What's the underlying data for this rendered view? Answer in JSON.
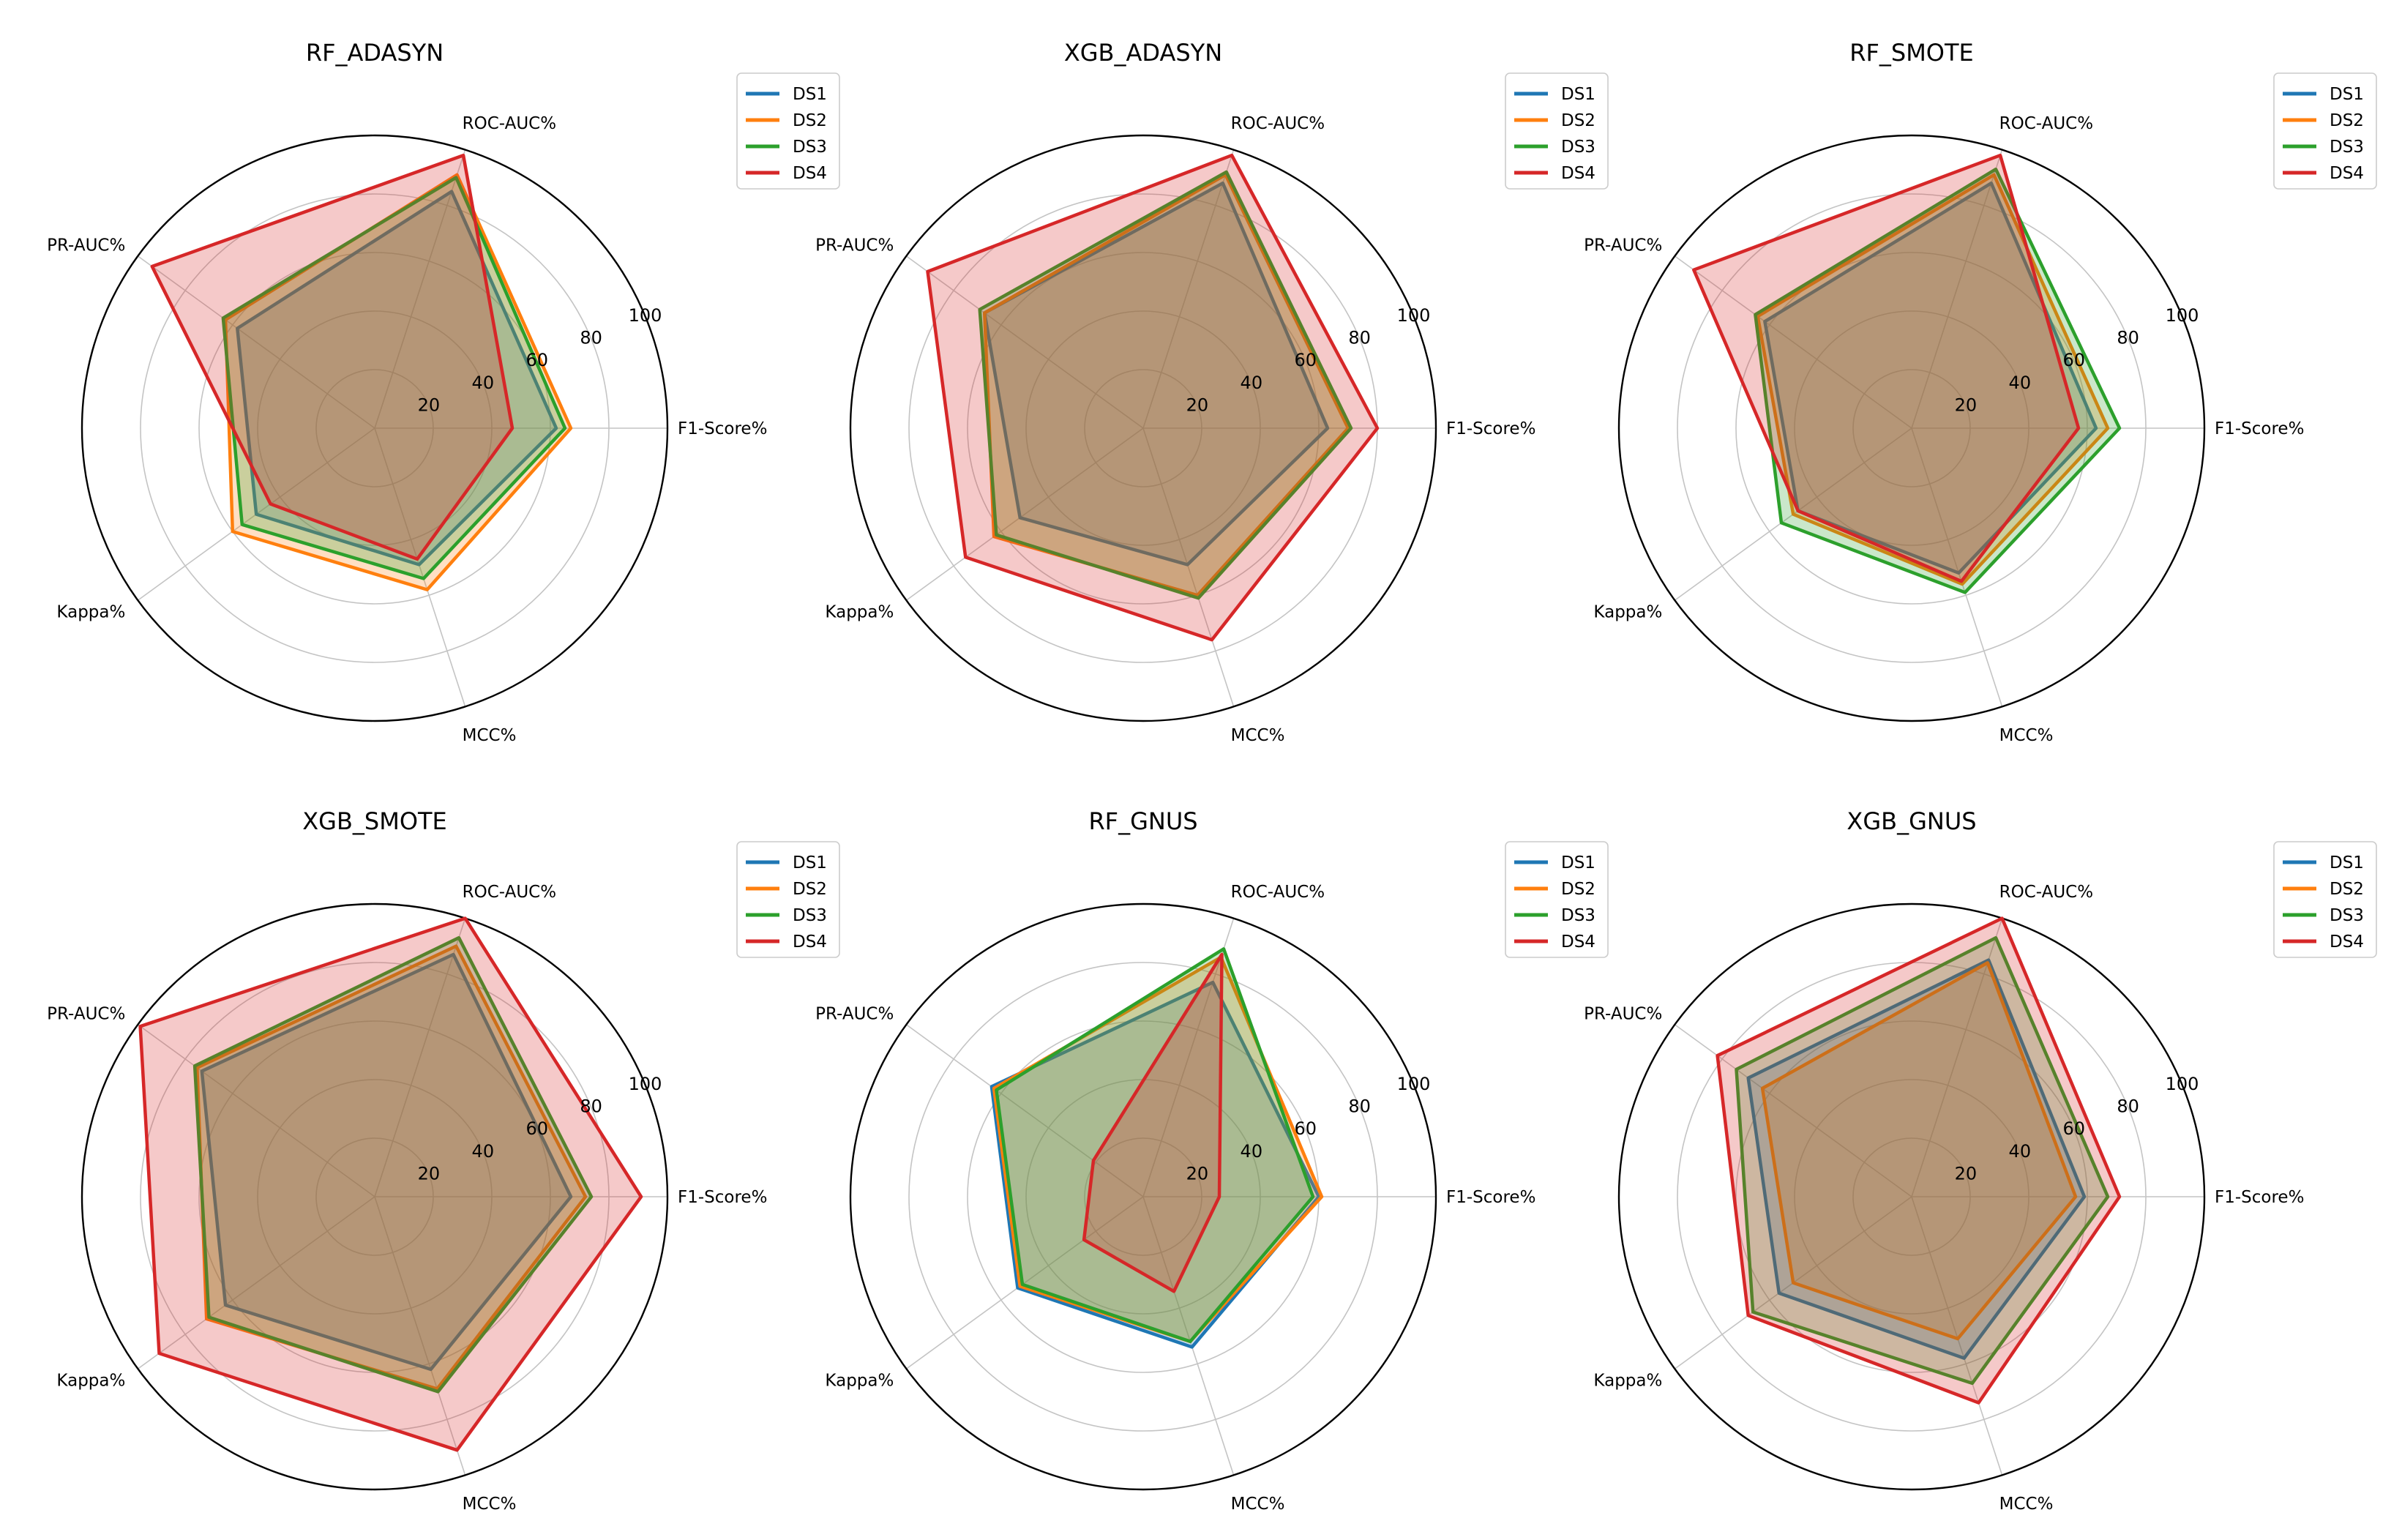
{
  "colors": {
    "DS1": "#1f77b4",
    "DS2": "#ff7f0e",
    "DS3": "#2ca02c",
    "DS4": "#d62728"
  },
  "chart_data": [
    {
      "type": "radar",
      "title": "RF_ADASYN",
      "axes": [
        "F1-Score%",
        "ROC-AUC%",
        "PR-AUC%",
        "Kappa%",
        "MCC%"
      ],
      "rticks": [
        "20",
        "40",
        "60",
        "80",
        "100"
      ],
      "rlim": [
        0,
        100
      ],
      "legend": "top-right",
      "series": [
        {
          "name": "DS1",
          "values": [
            62,
            85,
            58,
            50,
            49
          ]
        },
        {
          "name": "DS2",
          "values": [
            67,
            91,
            63,
            60,
            58
          ]
        },
        {
          "name": "DS3",
          "values": [
            65,
            90,
            64,
            56,
            54
          ]
        },
        {
          "name": "DS4",
          "values": [
            47,
            98,
            94,
            44,
            47
          ]
        }
      ]
    },
    {
      "type": "radar",
      "title": "XGB_ADASYN",
      "axes": [
        "F1-Score%",
        "ROC-AUC%",
        "PR-AUC%",
        "Kappa%",
        "MCC%"
      ],
      "rticks": [
        "20",
        "40",
        "60",
        "80",
        "100"
      ],
      "rlim": [
        0,
        100
      ],
      "legend": "top-right",
      "series": [
        {
          "name": "DS1",
          "values": [
            63,
            88,
            67,
            52,
            49
          ]
        },
        {
          "name": "DS2",
          "values": [
            70,
            91,
            67,
            63,
            60
          ]
        },
        {
          "name": "DS3",
          "values": [
            71,
            92,
            69,
            62,
            61
          ]
        },
        {
          "name": "DS4",
          "values": [
            80,
            98,
            91,
            75,
            76
          ]
        }
      ]
    },
    {
      "type": "radar",
      "title": "RF_SMOTE",
      "axes": [
        "F1-Score%",
        "ROC-AUC%",
        "PR-AUC%",
        "Kappa%",
        "MCC%"
      ],
      "rticks": [
        "20",
        "40",
        "60",
        "80",
        "100"
      ],
      "rlim": [
        0,
        100
      ],
      "legend": "top-right",
      "series": [
        {
          "name": "DS1",
          "values": [
            63,
            88,
            62,
            48,
            52
          ]
        },
        {
          "name": "DS2",
          "values": [
            67,
            91,
            65,
            50,
            56
          ]
        },
        {
          "name": "DS3",
          "values": [
            71,
            93,
            66,
            55,
            59
          ]
        },
        {
          "name": "DS4",
          "values": [
            57,
            98,
            92,
            48,
            55
          ]
        }
      ]
    },
    {
      "type": "radar",
      "title": "XGB_SMOTE",
      "axes": [
        "F1-Score%",
        "ROC-AUC%",
        "PR-AUC%",
        "Kappa%",
        "MCC%"
      ],
      "rticks": [
        "20",
        "40",
        "60",
        "80",
        "100"
      ],
      "rlim": [
        0,
        100
      ],
      "legend": "top-right",
      "series": [
        {
          "name": "DS1",
          "values": [
            67,
            87,
            73,
            63,
            62
          ]
        },
        {
          "name": "DS2",
          "values": [
            72,
            90,
            75,
            71,
            69
          ]
        },
        {
          "name": "DS3",
          "values": [
            74,
            93,
            76,
            70,
            70
          ]
        },
        {
          "name": "DS4",
          "values": [
            91,
            100,
            99,
            91,
            91
          ]
        }
      ]
    },
    {
      "type": "radar",
      "title": "RF_GNUS",
      "axes": [
        "F1-Score%",
        "ROC-AUC%",
        "PR-AUC%",
        "Kappa%",
        "MCC%"
      ],
      "rticks": [
        "20",
        "40",
        "60",
        "80",
        "100"
      ],
      "rlim": [
        0,
        100
      ],
      "legend": "top-right",
      "series": [
        {
          "name": "DS1",
          "values": [
            60,
            77,
            64,
            53,
            54
          ]
        },
        {
          "name": "DS2",
          "values": [
            61,
            86,
            63,
            52,
            52
          ]
        },
        {
          "name": "DS3",
          "values": [
            58,
            89,
            62,
            51,
            52
          ]
        },
        {
          "name": "DS4",
          "values": [
            26,
            87,
            21,
            25,
            34
          ]
        }
      ]
    },
    {
      "type": "radar",
      "title": "XGB_GNUS",
      "axes": [
        "F1-Score%",
        "ROC-AUC%",
        "PR-AUC%",
        "Kappa%",
        "MCC%"
      ],
      "rticks": [
        "20",
        "40",
        "60",
        "80",
        "100"
      ],
      "rlim": [
        0,
        100
      ],
      "legend": "top-right",
      "series": [
        {
          "name": "DS1",
          "values": [
            59,
            85,
            69,
            56,
            58
          ]
        },
        {
          "name": "DS2",
          "values": [
            56,
            84,
            63,
            50,
            51
          ]
        },
        {
          "name": "DS3",
          "values": [
            67,
            93,
            74,
            67,
            67
          ]
        },
        {
          "name": "DS4",
          "values": [
            71,
            100,
            82,
            69,
            74
          ]
        }
      ]
    }
  ]
}
